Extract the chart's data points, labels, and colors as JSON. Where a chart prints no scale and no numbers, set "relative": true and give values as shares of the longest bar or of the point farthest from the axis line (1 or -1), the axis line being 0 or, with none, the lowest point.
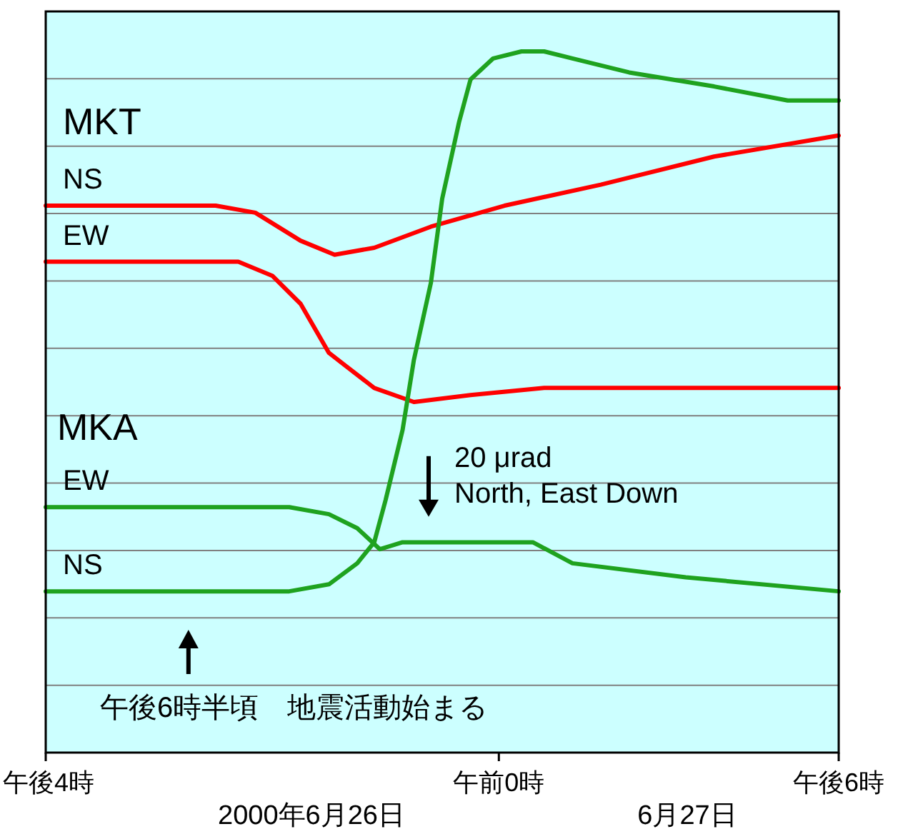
{
  "chart_data": {
    "type": "line",
    "relative": true,
    "grid": "y",
    "line_style": "solid",
    "xlim": [
      "2000-06-26T16:00",
      "2000-06-27T06:00"
    ],
    "xticks": [
      {
        "value": "2000-06-26T16:00",
        "label": "午後4時"
      },
      {
        "value": "2000-06-27T00:00",
        "label": "午前0時"
      },
      {
        "value": "2000-06-27T06:00",
        "label": "午後6時"
      }
    ],
    "series": [
      {
        "name": "NS",
        "color": "#ff0000",
        "x": [
          "2000-06-26T16:00",
          "2000-06-26T19:00",
          "2000-06-26T19:42",
          "2000-06-26T20:30",
          "2000-06-26T21:06",
          "2000-06-26T21:48",
          "2000-06-26T22:48",
          "2000-06-27T00:06",
          "2000-06-27T01:48",
          "2000-06-27T03:48",
          "2000-06-27T06:00"
        ],
        "values": [
          0.78,
          0.78,
          0.77,
          0.73,
          0.71,
          0.72,
          0.75,
          0.78,
          0.81,
          0.85,
          0.88
        ]
      },
      {
        "name": "EW",
        "color": "#ff0000",
        "x": [
          "2000-06-26T16:00",
          "2000-06-26T19:24",
          "2000-06-26T20:00",
          "2000-06-26T20:30",
          "2000-06-26T21:00",
          "2000-06-26T21:48",
          "2000-06-26T22:30",
          "2000-06-26T23:30",
          "2000-06-27T00:48",
          "2000-06-27T02:18",
          "2000-06-27T04:24",
          "2000-06-27T06:00"
        ],
        "values": [
          0.7,
          0.7,
          0.68,
          0.64,
          0.57,
          0.52,
          0.5,
          0.51,
          0.52,
          0.52,
          0.52,
          0.52
        ]
      },
      {
        "name": "EW",
        "color": "#1fa21f",
        "x": [
          "2000-06-26T16:00",
          "2000-06-26T19:00",
          "2000-06-26T20:18",
          "2000-06-26T21:00",
          "2000-06-26T21:30",
          "2000-06-26T21:54",
          "2000-06-26T22:18",
          "2000-06-26T22:48",
          "2000-06-27T00:06",
          "2000-06-27T00:36",
          "2000-06-27T01:18",
          "2000-06-27T03:18",
          "2000-06-27T06:00"
        ],
        "values": [
          0.35,
          0.35,
          0.35,
          0.34,
          0.32,
          0.29,
          0.3,
          0.3,
          0.3,
          0.3,
          0.27,
          0.25,
          0.23
        ]
      },
      {
        "name": "NS",
        "color": "#1fa21f",
        "x": [
          "2000-06-26T16:00",
          "2000-06-26T19:00",
          "2000-06-26T20:18",
          "2000-06-26T21:00",
          "2000-06-26T21:30",
          "2000-06-26T21:48",
          "2000-06-26T22:00",
          "2000-06-26T22:18",
          "2000-06-26T22:30",
          "2000-06-26T22:48",
          "2000-06-26T23:00",
          "2000-06-26T23:18",
          "2000-06-26T23:30",
          "2000-06-26T23:54",
          "2000-06-27T00:24",
          "2000-06-27T00:48",
          "2000-06-27T01:18",
          "2000-06-27T02:18",
          "2000-06-27T03:48",
          "2000-06-27T05:06",
          "2000-06-27T06:00"
        ],
        "values": [
          0.23,
          0.23,
          0.23,
          0.24,
          0.27,
          0.3,
          0.36,
          0.46,
          0.56,
          0.67,
          0.79,
          0.9,
          0.96,
          0.99,
          1,
          1,
          0.99,
          0.97,
          0.95,
          0.93,
          0.93
        ]
      }
    ],
    "annotations": [
      "MKT",
      "MKA",
      "20 μrad\nNorth, East Down",
      "午後6時半頃　地震活動始まる",
      "2000年6月26日",
      "6月27日"
    ]
  }
}
